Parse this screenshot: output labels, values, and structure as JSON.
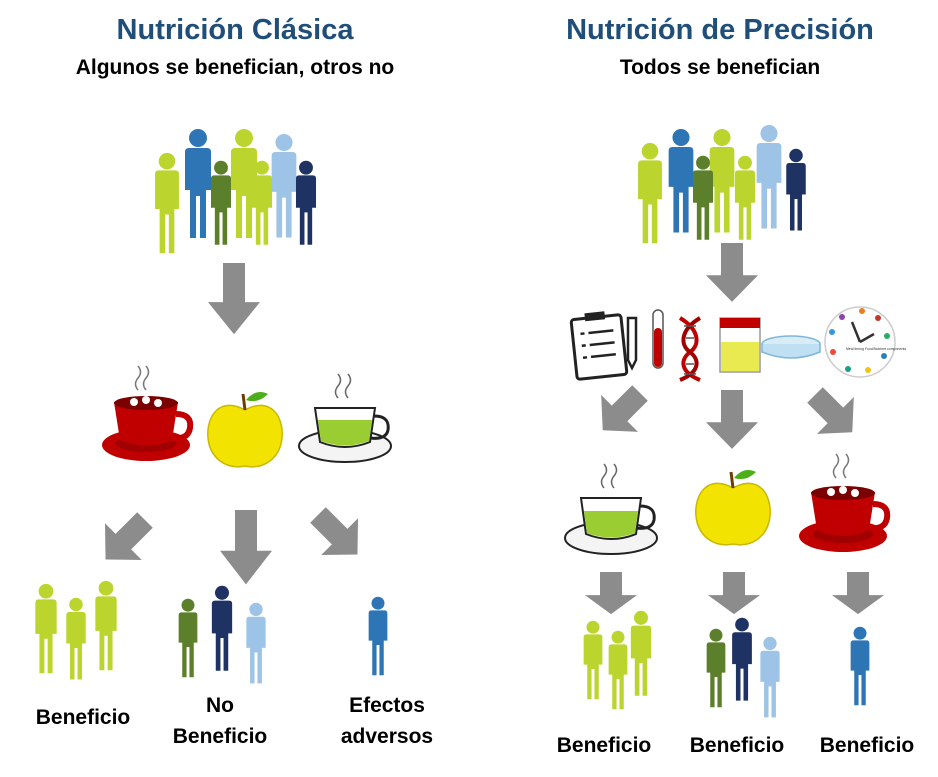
{
  "colors": {
    "title": "#1f4e79",
    "arrow": "#8c8c8c",
    "lime": "#bcd52e",
    "olive": "#5b7f2b",
    "blue": "#2e75b6",
    "light_blue": "#9dc3e6",
    "navy": "#1f3264",
    "red_cup": "#c00000",
    "apple": "#f2e300",
    "green_tea": "#9acd32"
  },
  "left": {
    "title": "Nutrición Clásica",
    "subtitle": "Algunos se benefician, otros no",
    "outcomes": [
      {
        "line1": "Beneficio",
        "line2": ""
      },
      {
        "line1": "No",
        "line2": "Beneficio"
      },
      {
        "line1": "Efectos",
        "line2": "adversos"
      }
    ]
  },
  "right": {
    "title": "Nutrición de Precisión",
    "subtitle": "Todos se benefician",
    "tests": [
      "clipboard-icon",
      "test-tube-icon",
      "dna-icon",
      "urine-sample-icon",
      "petri-dish-icon",
      "meal-timing-clock-icon"
    ],
    "clock_text": "Meal timing Food/Nutrient components",
    "outcomes": [
      {
        "line1": "Beneficio"
      },
      {
        "line1": "Beneficio"
      },
      {
        "line1": "Beneficio"
      }
    ]
  }
}
